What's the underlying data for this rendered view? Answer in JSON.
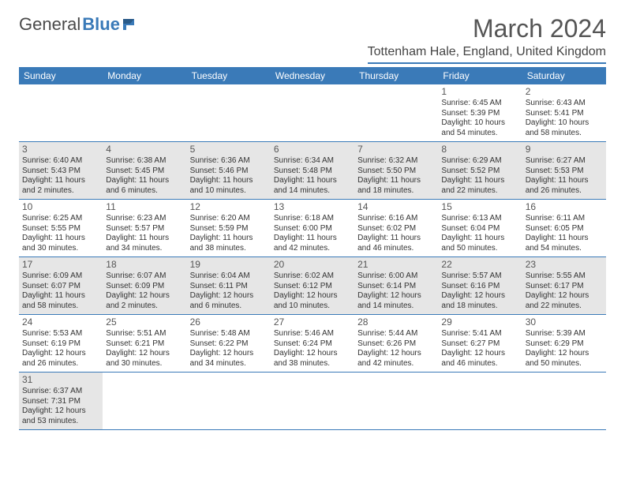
{
  "logo": {
    "text1": "General",
    "text2": "Blue"
  },
  "title": "March 2024",
  "location": "Tottenham Hale, England, United Kingdom",
  "colors": {
    "accent": "#3a7ab8",
    "header_text": "#ffffff",
    "shade": "#e6e6e6",
    "text": "#333333",
    "background": "#ffffff"
  },
  "typography": {
    "title_fontsize": 32,
    "location_fontsize": 16,
    "header_fontsize": 12,
    "cell_fontsize": 10,
    "daynum_fontsize": 12
  },
  "day_headers": [
    "Sunday",
    "Monday",
    "Tuesday",
    "Wednesday",
    "Thursday",
    "Friday",
    "Saturday"
  ],
  "weeks": [
    [
      {
        "day": "",
        "sunrise": "",
        "sunset": "",
        "daylight": ""
      },
      {
        "day": "",
        "sunrise": "",
        "sunset": "",
        "daylight": ""
      },
      {
        "day": "",
        "sunrise": "",
        "sunset": "",
        "daylight": ""
      },
      {
        "day": "",
        "sunrise": "",
        "sunset": "",
        "daylight": ""
      },
      {
        "day": "",
        "sunrise": "",
        "sunset": "",
        "daylight": ""
      },
      {
        "day": "1",
        "sunrise": "Sunrise: 6:45 AM",
        "sunset": "Sunset: 5:39 PM",
        "daylight": "Daylight: 10 hours and 54 minutes."
      },
      {
        "day": "2",
        "sunrise": "Sunrise: 6:43 AM",
        "sunset": "Sunset: 5:41 PM",
        "daylight": "Daylight: 10 hours and 58 minutes."
      }
    ],
    [
      {
        "day": "3",
        "sunrise": "Sunrise: 6:40 AM",
        "sunset": "Sunset: 5:43 PM",
        "daylight": "Daylight: 11 hours and 2 minutes."
      },
      {
        "day": "4",
        "sunrise": "Sunrise: 6:38 AM",
        "sunset": "Sunset: 5:45 PM",
        "daylight": "Daylight: 11 hours and 6 minutes."
      },
      {
        "day": "5",
        "sunrise": "Sunrise: 6:36 AM",
        "sunset": "Sunset: 5:46 PM",
        "daylight": "Daylight: 11 hours and 10 minutes."
      },
      {
        "day": "6",
        "sunrise": "Sunrise: 6:34 AM",
        "sunset": "Sunset: 5:48 PM",
        "daylight": "Daylight: 11 hours and 14 minutes."
      },
      {
        "day": "7",
        "sunrise": "Sunrise: 6:32 AM",
        "sunset": "Sunset: 5:50 PM",
        "daylight": "Daylight: 11 hours and 18 minutes."
      },
      {
        "day": "8",
        "sunrise": "Sunrise: 6:29 AM",
        "sunset": "Sunset: 5:52 PM",
        "daylight": "Daylight: 11 hours and 22 minutes."
      },
      {
        "day": "9",
        "sunrise": "Sunrise: 6:27 AM",
        "sunset": "Sunset: 5:53 PM",
        "daylight": "Daylight: 11 hours and 26 minutes."
      }
    ],
    [
      {
        "day": "10",
        "sunrise": "Sunrise: 6:25 AM",
        "sunset": "Sunset: 5:55 PM",
        "daylight": "Daylight: 11 hours and 30 minutes."
      },
      {
        "day": "11",
        "sunrise": "Sunrise: 6:23 AM",
        "sunset": "Sunset: 5:57 PM",
        "daylight": "Daylight: 11 hours and 34 minutes."
      },
      {
        "day": "12",
        "sunrise": "Sunrise: 6:20 AM",
        "sunset": "Sunset: 5:59 PM",
        "daylight": "Daylight: 11 hours and 38 minutes."
      },
      {
        "day": "13",
        "sunrise": "Sunrise: 6:18 AM",
        "sunset": "Sunset: 6:00 PM",
        "daylight": "Daylight: 11 hours and 42 minutes."
      },
      {
        "day": "14",
        "sunrise": "Sunrise: 6:16 AM",
        "sunset": "Sunset: 6:02 PM",
        "daylight": "Daylight: 11 hours and 46 minutes."
      },
      {
        "day": "15",
        "sunrise": "Sunrise: 6:13 AM",
        "sunset": "Sunset: 6:04 PM",
        "daylight": "Daylight: 11 hours and 50 minutes."
      },
      {
        "day": "16",
        "sunrise": "Sunrise: 6:11 AM",
        "sunset": "Sunset: 6:05 PM",
        "daylight": "Daylight: 11 hours and 54 minutes."
      }
    ],
    [
      {
        "day": "17",
        "sunrise": "Sunrise: 6:09 AM",
        "sunset": "Sunset: 6:07 PM",
        "daylight": "Daylight: 11 hours and 58 minutes."
      },
      {
        "day": "18",
        "sunrise": "Sunrise: 6:07 AM",
        "sunset": "Sunset: 6:09 PM",
        "daylight": "Daylight: 12 hours and 2 minutes."
      },
      {
        "day": "19",
        "sunrise": "Sunrise: 6:04 AM",
        "sunset": "Sunset: 6:11 PM",
        "daylight": "Daylight: 12 hours and 6 minutes."
      },
      {
        "day": "20",
        "sunrise": "Sunrise: 6:02 AM",
        "sunset": "Sunset: 6:12 PM",
        "daylight": "Daylight: 12 hours and 10 minutes."
      },
      {
        "day": "21",
        "sunrise": "Sunrise: 6:00 AM",
        "sunset": "Sunset: 6:14 PM",
        "daylight": "Daylight: 12 hours and 14 minutes."
      },
      {
        "day": "22",
        "sunrise": "Sunrise: 5:57 AM",
        "sunset": "Sunset: 6:16 PM",
        "daylight": "Daylight: 12 hours and 18 minutes."
      },
      {
        "day": "23",
        "sunrise": "Sunrise: 5:55 AM",
        "sunset": "Sunset: 6:17 PM",
        "daylight": "Daylight: 12 hours and 22 minutes."
      }
    ],
    [
      {
        "day": "24",
        "sunrise": "Sunrise: 5:53 AM",
        "sunset": "Sunset: 6:19 PM",
        "daylight": "Daylight: 12 hours and 26 minutes."
      },
      {
        "day": "25",
        "sunrise": "Sunrise: 5:51 AM",
        "sunset": "Sunset: 6:21 PM",
        "daylight": "Daylight: 12 hours and 30 minutes."
      },
      {
        "day": "26",
        "sunrise": "Sunrise: 5:48 AM",
        "sunset": "Sunset: 6:22 PM",
        "daylight": "Daylight: 12 hours and 34 minutes."
      },
      {
        "day": "27",
        "sunrise": "Sunrise: 5:46 AM",
        "sunset": "Sunset: 6:24 PM",
        "daylight": "Daylight: 12 hours and 38 minutes."
      },
      {
        "day": "28",
        "sunrise": "Sunrise: 5:44 AM",
        "sunset": "Sunset: 6:26 PM",
        "daylight": "Daylight: 12 hours and 42 minutes."
      },
      {
        "day": "29",
        "sunrise": "Sunrise: 5:41 AM",
        "sunset": "Sunset: 6:27 PM",
        "daylight": "Daylight: 12 hours and 46 minutes."
      },
      {
        "day": "30",
        "sunrise": "Sunrise: 5:39 AM",
        "sunset": "Sunset: 6:29 PM",
        "daylight": "Daylight: 12 hours and 50 minutes."
      }
    ],
    [
      {
        "day": "31",
        "sunrise": "Sunrise: 6:37 AM",
        "sunset": "Sunset: 7:31 PM",
        "daylight": "Daylight: 12 hours and 53 minutes."
      },
      {
        "day": "",
        "sunrise": "",
        "sunset": "",
        "daylight": ""
      },
      {
        "day": "",
        "sunrise": "",
        "sunset": "",
        "daylight": ""
      },
      {
        "day": "",
        "sunrise": "",
        "sunset": "",
        "daylight": ""
      },
      {
        "day": "",
        "sunrise": "",
        "sunset": "",
        "daylight": ""
      },
      {
        "day": "",
        "sunrise": "",
        "sunset": "",
        "daylight": ""
      },
      {
        "day": "",
        "sunrise": "",
        "sunset": "",
        "daylight": ""
      }
    ]
  ]
}
